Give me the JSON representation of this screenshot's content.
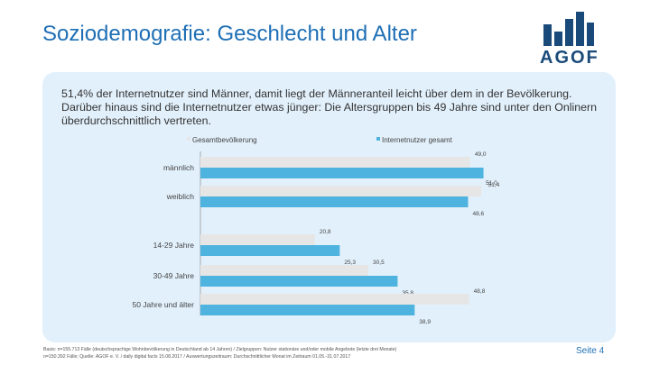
{
  "page": {
    "title": "Soziodemografie: Geschlecht und Alter",
    "intro": "51,4% der Internetnutzer sind Männer, damit liegt der Männeranteil leicht über dem in der Bevölkerung. Darüber hinaus sind die Internetnutzer etwas jünger: Die Altersgruppen bis 49 Jahre sind unter den Onlinern überdurchschnittlich vertreten.",
    "footnote_line1": "Basis: n=155.713 Fälle (deutschsprachige Wohnbevölkerung in Deutschland ab 14 Jahren) / Zielgruppen: Nutzer stationäre und/oder mobile Angebote (letzte drei Monate)",
    "footnote_line2": "n=150.392 Fälle; Quelle: AGOF e. V. / daily digital facts 15.08.2017 / Auswertungszeitraum: Durchschnittlicher Monat im Zeitraum 01.05.-31.07.2017",
    "page_number": "Seite 4"
  },
  "logo": {
    "text": "AGOF",
    "color": "#1a4a7a"
  },
  "colors": {
    "accent": "#1f6fb5",
    "panel": "#e2f0fb",
    "series1": "#e6e6e6",
    "series2": "#4eb3df"
  },
  "chart_data": {
    "type": "bar",
    "orientation": "horizontal",
    "categories": [
      "männlich",
      "weiblich",
      "14-29 Jahre",
      "30-49 Jahre",
      "50 Jahre und älter"
    ],
    "groups": [
      [
        "männlich",
        "weiblich"
      ],
      [
        "14-29 Jahre",
        "30-49 Jahre",
        "50 Jahre und älter"
      ]
    ],
    "series": [
      {
        "name": "Gesamtbevölkerung",
        "values": [
          49.0,
          51.0,
          20.8,
          30.5,
          48.8
        ],
        "labels": [
          "49,0",
          "51,0",
          "20,8",
          "30,5",
          "48,8"
        ]
      },
      {
        "name": "Internetnutzer gesamt",
        "values": [
          51.4,
          48.6,
          25.3,
          35.8,
          38.9
        ],
        "labels": [
          "51,4",
          "48,6",
          "25,3",
          "35,8",
          "38,9"
        ]
      }
    ],
    "xlim": [
      0,
      100
    ],
    "legend": "top",
    "grid": false
  }
}
